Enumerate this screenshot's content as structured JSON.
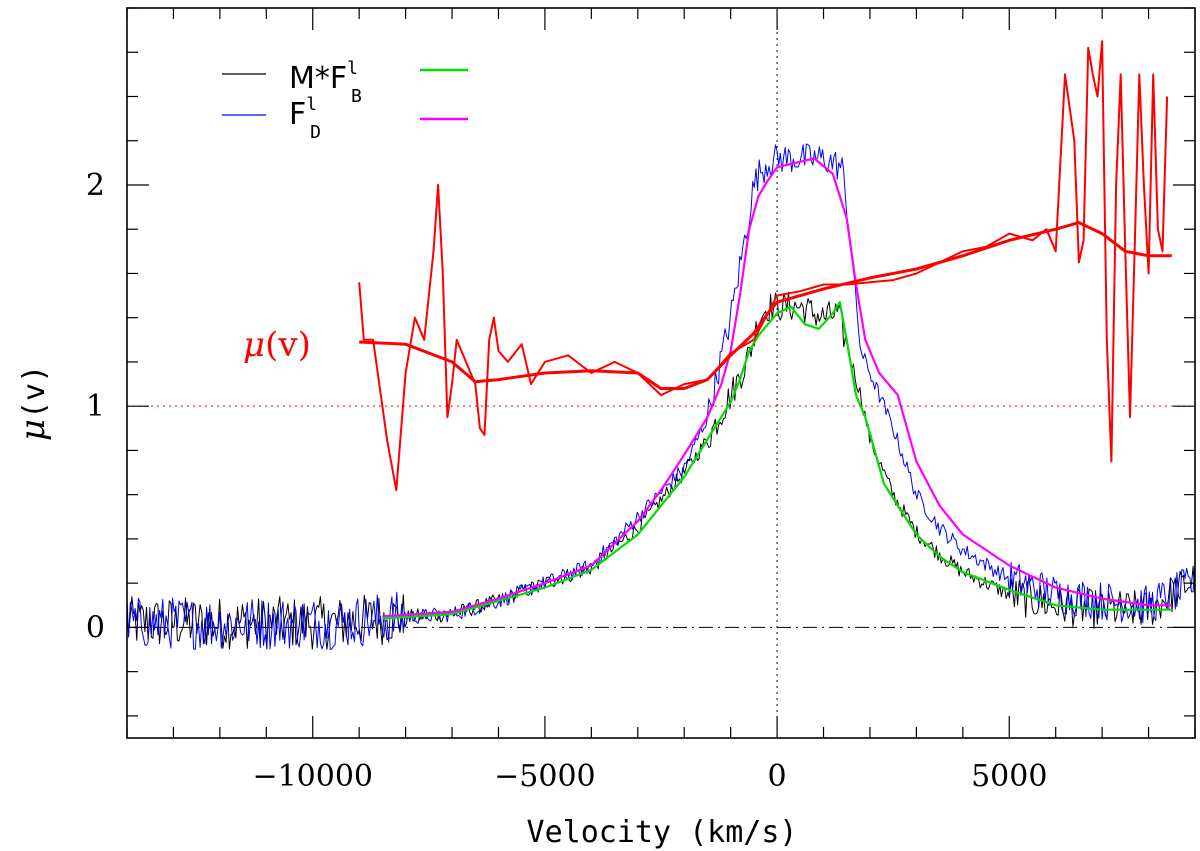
{
  "chart_data": {
    "type": "line",
    "title": "",
    "xlabel": "Velocity  (km/s)",
    "ylabel_symbol": "μ",
    "ylabel_arg": "(v)",
    "xlim": [
      -14000,
      9000
    ],
    "ylim": [
      -0.5,
      2.8
    ],
    "xticks_major": [
      -10000,
      -5000,
      0,
      5000
    ],
    "xtick_labels": [
      "−10000",
      "−5000",
      "0",
      "5000"
    ],
    "yticks_major": [
      0,
      1,
      2
    ],
    "ytick_labels": [
      "0",
      "1",
      "2"
    ],
    "minor_x_step": 1000,
    "minor_y_step": 0.2,
    "reference_lines": [
      {
        "name": "zero-line",
        "axis": "y",
        "value": 0,
        "style": "dash-dot",
        "color": "#000000"
      },
      {
        "name": "unity-line",
        "axis": "y",
        "value": 1,
        "style": "dotted",
        "color": "#ff0000"
      },
      {
        "name": "zero-velocity-line",
        "axis": "x",
        "value": 0,
        "style": "dotted",
        "color": "#000000"
      }
    ],
    "annotation": {
      "text_symbol": "μ",
      "text_arg": "(v)",
      "color": "#ff0000",
      "x": -11500,
      "y": 1.28
    },
    "legend": {
      "placement": "top-left",
      "entries": [
        {
          "label_main": "M*F",
          "sup": "l",
          "sub": "B",
          "color": "#000000",
          "paired_color": "#00dd00"
        },
        {
          "label_main": "F",
          "sup": "l",
          "sub": "D",
          "color": "#0000ff",
          "paired_color": "#ff00ff"
        }
      ]
    },
    "series": [
      {
        "name": "M*F_B^l (observed)",
        "color": "#000000",
        "width": 1,
        "noise": true,
        "x": [
          -14000,
          -9500,
          -8500,
          -7000,
          -6000,
          -5000,
          -4000,
          -3000,
          -2000,
          -1500,
          -1000,
          -700,
          -500,
          -400,
          -200,
          0,
          500,
          1000,
          1300,
          1600,
          1800,
          2000,
          2500,
          3000,
          3500,
          4000,
          5000,
          6000,
          7000,
          8000,
          9000
        ],
        "y": [
          0.02,
          0.02,
          0.04,
          0.06,
          0.12,
          0.2,
          0.27,
          0.45,
          0.7,
          0.85,
          1.05,
          1.18,
          1.3,
          1.4,
          1.45,
          1.45,
          1.45,
          1.4,
          1.42,
          1.2,
          1.05,
          0.85,
          0.6,
          0.43,
          0.33,
          0.25,
          0.15,
          0.1,
          0.08,
          0.08,
          0.22
        ]
      },
      {
        "name": "F_D^l (observed)",
        "color": "#0000ff",
        "width": 1,
        "noise": true,
        "x": [
          -14000,
          -9500,
          -8500,
          -7000,
          -6000,
          -5000,
          -4000,
          -3000,
          -2000,
          -1500,
          -1000,
          -700,
          -500,
          -400,
          -200,
          0,
          500,
          1000,
          1400,
          1600,
          1800,
          2000,
          2500,
          3000,
          3500,
          4000,
          5000,
          6000,
          7000,
          8000,
          9000
        ],
        "y": [
          0.02,
          0.02,
          0.04,
          0.06,
          0.12,
          0.2,
          0.28,
          0.5,
          0.72,
          0.95,
          1.4,
          1.75,
          2.0,
          2.05,
          2.1,
          2.12,
          2.12,
          2.12,
          2.08,
          1.7,
          1.25,
          1.15,
          0.9,
          0.6,
          0.45,
          0.35,
          0.22,
          0.15,
          0.12,
          0.1,
          0.2
        ]
      },
      {
        "name": "M*F_B^l (model)",
        "color": "#00dd00",
        "width": 2.2,
        "x": [
          -8500,
          -7000,
          -6000,
          -5000,
          -4000,
          -3000,
          -2500,
          -2000,
          -1500,
          -1000,
          -800,
          -600,
          -400,
          -200,
          0,
          300,
          600,
          900,
          1200,
          1350,
          1500,
          1700,
          1900,
          2100,
          2300,
          2600,
          3000,
          3500,
          4000,
          5000,
          6000,
          7000,
          8000,
          8500
        ],
        "y": [
          0.04,
          0.06,
          0.12,
          0.18,
          0.26,
          0.42,
          0.55,
          0.68,
          0.85,
          1.02,
          1.12,
          1.25,
          1.32,
          1.37,
          1.42,
          1.45,
          1.37,
          1.35,
          1.42,
          1.47,
          1.3,
          1.05,
          0.95,
          0.8,
          0.65,
          0.55,
          0.42,
          0.32,
          0.25,
          0.17,
          0.1,
          0.08,
          0.08,
          0.08
        ]
      },
      {
        "name": "F_D^l (model)",
        "color": "#ff00ff",
        "width": 2.2,
        "x": [
          -8500,
          -7000,
          -6000,
          -5000,
          -4000,
          -3000,
          -2500,
          -2000,
          -1500,
          -1200,
          -1000,
          -800,
          -600,
          -400,
          -200,
          0,
          400,
          800,
          1200,
          1500,
          1700,
          1900,
          2200,
          2600,
          3000,
          3500,
          4000,
          5000,
          6000,
          7000,
          8000,
          8500
        ],
        "y": [
          0.05,
          0.07,
          0.13,
          0.2,
          0.28,
          0.48,
          0.62,
          0.78,
          0.95,
          1.1,
          1.25,
          1.5,
          1.8,
          1.95,
          2.02,
          2.08,
          2.1,
          2.12,
          2.05,
          1.85,
          1.55,
          1.3,
          1.15,
          1.05,
          0.75,
          0.55,
          0.42,
          0.28,
          0.18,
          0.13,
          0.1,
          0.1
        ]
      },
      {
        "name": "mu(v) smooth",
        "color": "#ff0000",
        "width": 3,
        "x": [
          -9000,
          -8000,
          -7000,
          -6500,
          -6000,
          -5000,
          -4000,
          -3000,
          -2500,
          -2000,
          -1500,
          -1000,
          -500,
          -200,
          0,
          500,
          1000,
          2000,
          3000,
          4000,
          5000,
          6000,
          6500,
          7000,
          7500,
          8000,
          8500
        ],
        "y": [
          1.29,
          1.28,
          1.2,
          1.11,
          1.12,
          1.15,
          1.16,
          1.15,
          1.08,
          1.08,
          1.12,
          1.23,
          1.33,
          1.42,
          1.47,
          1.5,
          1.53,
          1.58,
          1.62,
          1.68,
          1.75,
          1.8,
          1.83,
          1.78,
          1.7,
          1.68,
          1.68
        ]
      },
      {
        "name": "mu(v) raw",
        "color": "#ff0000",
        "width": 2,
        "x": [
          -9000,
          -8900,
          -8700,
          -8400,
          -8200,
          -8000,
          -7800,
          -7600,
          -7400,
          -7300,
          -7200,
          -7100,
          -7000,
          -6900,
          -6700,
          -6500,
          -6400,
          -6300,
          -6200,
          -6100,
          -6000,
          -5800,
          -5500,
          -5300,
          -5000,
          -4500,
          -4000,
          -3500,
          -3000,
          -2500,
          -2000,
          -1500,
          -1000,
          -500,
          0,
          500,
          1000,
          1500,
          2000,
          2500,
          3000,
          3500,
          4000,
          4500,
          5000,
          5500,
          5800,
          6000,
          6200,
          6400,
          6500,
          6600,
          6700,
          6800,
          6900,
          7000,
          7100,
          7200,
          7300,
          7400,
          7500,
          7600,
          7700,
          7800,
          7900,
          8000,
          8100,
          8200,
          8300,
          8400
        ],
        "y": [
          1.56,
          1.3,
          1.3,
          0.85,
          0.62,
          1.15,
          1.4,
          1.3,
          1.7,
          2.0,
          1.6,
          0.95,
          1.1,
          1.3,
          1.2,
          1.1,
          0.9,
          0.87,
          1.3,
          1.4,
          1.25,
          1.2,
          1.28,
          1.1,
          1.2,
          1.23,
          1.15,
          1.2,
          1.15,
          1.05,
          1.1,
          1.12,
          1.24,
          1.3,
          1.5,
          1.52,
          1.55,
          1.55,
          1.56,
          1.57,
          1.6,
          1.65,
          1.7,
          1.72,
          1.78,
          1.75,
          1.8,
          1.7,
          2.5,
          2.2,
          1.65,
          1.75,
          2.62,
          2.5,
          2.4,
          2.65,
          1.3,
          0.75,
          2.0,
          2.5,
          1.7,
          0.95,
          1.7,
          2.5,
          2.0,
          1.6,
          2.5,
          1.8,
          1.7,
          2.4
        ]
      }
    ]
  }
}
